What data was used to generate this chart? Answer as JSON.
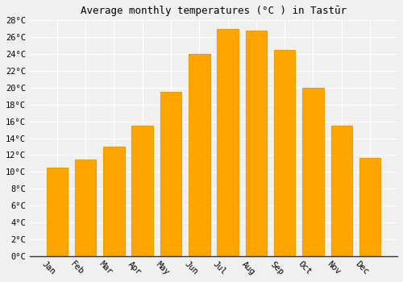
{
  "title": "Average monthly temperatures (°C ) in Tastūr",
  "months": [
    "Jan",
    "Feb",
    "Mar",
    "Apr",
    "May",
    "Jun",
    "Jul",
    "Aug",
    "Sep",
    "Oct",
    "Nov",
    "Dec"
  ],
  "values": [
    10.5,
    11.5,
    13.0,
    15.5,
    19.5,
    24.0,
    27.0,
    26.8,
    24.5,
    20.0,
    15.5,
    11.7
  ],
  "bar_color": "#FFA500",
  "bar_edge_color": "#E8A000",
  "background_color": "#f0f0f0",
  "grid_color": "#ffffff",
  "ylim": [
    0,
    28
  ],
  "ytick_max": 28,
  "ytick_step": 2,
  "title_fontsize": 9,
  "tick_fontsize": 7.5,
  "xlabel_rotation": -45
}
